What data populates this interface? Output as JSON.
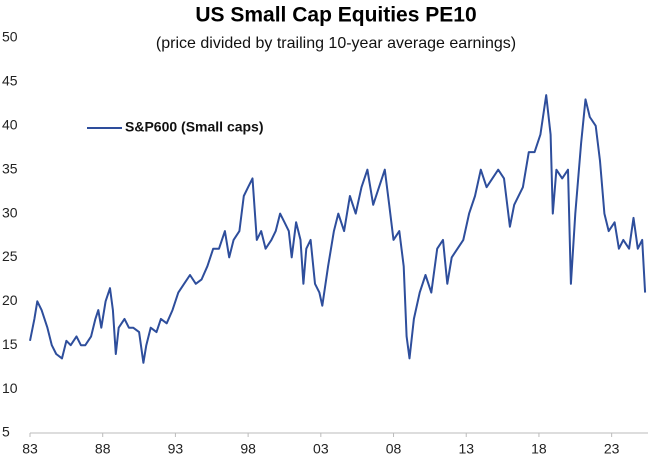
{
  "chart_data": {
    "type": "line",
    "title": "US Small Cap Equities PE10",
    "subtitle": "(price divided by trailing 10-year average earnings)",
    "x": [
      1983.0,
      1983.3,
      1983.5,
      1983.8,
      1984.2,
      1984.5,
      1984.8,
      1985.2,
      1985.5,
      1985.8,
      1986.2,
      1986.5,
      1986.8,
      1987.2,
      1987.5,
      1987.7,
      1987.9,
      1988.2,
      1988.5,
      1988.7,
      1988.9,
      1989.1,
      1989.5,
      1989.8,
      1990.1,
      1990.5,
      1990.8,
      1991.0,
      1991.3,
      1991.7,
      1992.0,
      1992.4,
      1992.8,
      1993.2,
      1993.6,
      1994.0,
      1994.4,
      1994.8,
      1995.2,
      1995.6,
      1996.0,
      1996.4,
      1996.7,
      1997.0,
      1997.4,
      1997.7,
      1998.0,
      1998.3,
      1998.6,
      1998.9,
      1999.2,
      1999.6,
      1999.9,
      2000.2,
      2000.5,
      2000.8,
      2001.0,
      2001.3,
      2001.6,
      2001.8,
      2002.0,
      2002.3,
      2002.6,
      2002.9,
      2003.1,
      2003.5,
      2003.9,
      2004.2,
      2004.6,
      2005.0,
      2005.4,
      2005.8,
      2006.2,
      2006.6,
      2007.0,
      2007.4,
      2007.7,
      2008.0,
      2008.4,
      2008.7,
      2008.9,
      2009.1,
      2009.4,
      2009.8,
      2010.2,
      2010.6,
      2011.0,
      2011.4,
      2011.7,
      2012.0,
      2012.4,
      2012.8,
      2013.2,
      2013.6,
      2014.0,
      2014.4,
      2014.8,
      2015.2,
      2015.6,
      2016.0,
      2016.3,
      2016.9,
      2017.3,
      2017.7,
      2018.1,
      2018.5,
      2018.8,
      2018.95,
      2019.2,
      2019.6,
      2020.0,
      2020.2,
      2020.5,
      2020.9,
      2021.2,
      2021.5,
      2021.9,
      2022.2,
      2022.5,
      2022.8,
      2023.2,
      2023.5,
      2023.8,
      2024.2,
      2024.5,
      2024.8,
      2025.1,
      2025.3
    ],
    "series": [
      {
        "name": "S&P600 (Small caps)",
        "color": "#2e4e9c",
        "values": [
          15.5,
          18,
          20,
          19,
          17,
          15,
          14,
          13.5,
          15.5,
          15,
          16,
          15,
          15,
          16,
          18,
          19,
          17,
          20,
          21.5,
          19,
          14,
          17,
          18,
          17,
          17,
          16.5,
          13,
          15,
          17,
          16.5,
          18,
          17.5,
          19,
          21,
          22,
          23,
          22,
          22.5,
          24,
          26,
          26,
          28,
          25,
          27,
          28,
          32,
          33,
          34,
          27,
          28,
          26,
          27,
          28,
          30,
          29,
          28,
          25,
          29,
          27,
          22,
          26,
          27,
          22,
          21,
          19.5,
          24,
          28,
          30,
          28,
          32,
          30,
          33,
          35,
          31,
          33,
          35,
          31,
          27,
          28,
          24,
          16,
          13.5,
          18,
          21,
          23,
          21,
          26,
          27,
          22,
          25,
          26,
          27,
          30,
          32,
          35,
          33,
          34,
          35,
          34,
          28.5,
          31,
          33,
          37,
          37,
          39,
          43.5,
          39,
          30,
          35,
          34,
          35,
          22,
          30,
          38,
          43,
          41,
          40,
          36,
          30,
          28,
          29,
          26,
          27,
          26,
          29.5,
          26,
          27,
          21
        ]
      }
    ],
    "xlim": [
      1983,
      2025.5
    ],
    "xticks": [
      {
        "value": 1983,
        "label": "83"
      },
      {
        "value": 1988,
        "label": "88"
      },
      {
        "value": 1993,
        "label": "93"
      },
      {
        "value": 1998,
        "label": "98"
      },
      {
        "value": 2003,
        "label": "03"
      },
      {
        "value": 2008,
        "label": "08"
      },
      {
        "value": 2013,
        "label": "13"
      },
      {
        "value": 2018,
        "label": "18"
      },
      {
        "value": 2023,
        "label": "23"
      }
    ],
    "ylim": [
      5,
      50
    ],
    "yticks": [
      5,
      10,
      15,
      20,
      25,
      30,
      35,
      40,
      45,
      50
    ],
    "legend": "top-left"
  }
}
